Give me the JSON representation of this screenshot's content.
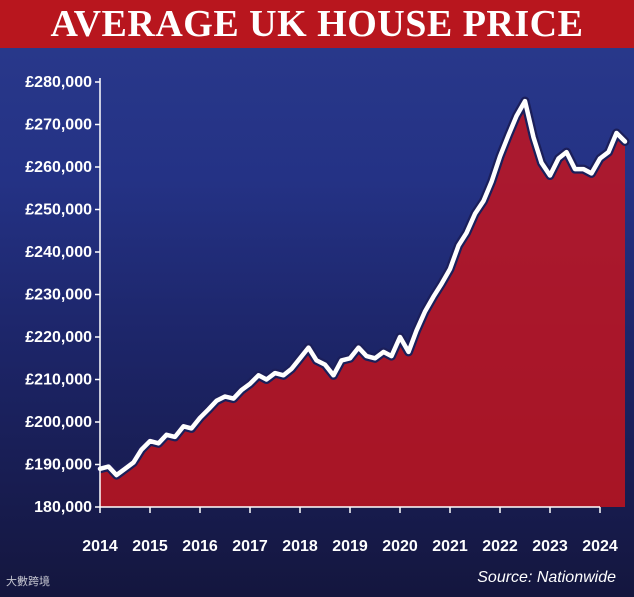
{
  "title": "AVERAGE UK HOUSE PRICE",
  "source": "Source: Nationwide",
  "watermark": "大數跨境",
  "colors": {
    "title_bg": "#b8161e",
    "area_fill": "#c8141c",
    "line": "#ffffff",
    "line_outline": "#1b1f5a"
  },
  "chart_data": {
    "type": "area",
    "title": "AVERAGE UK HOUSE PRICE",
    "xlabel": "",
    "ylabel": "",
    "xlim": [
      2014.0,
      2024.0
    ],
    "ylim": [
      180000,
      280000
    ],
    "grid": false,
    "yticks": [
      {
        "value": 280000,
        "label": "£280,000"
      },
      {
        "value": 270000,
        "label": "£270,000"
      },
      {
        "value": 260000,
        "label": "£260,000"
      },
      {
        "value": 250000,
        "label": "£250,000"
      },
      {
        "value": 240000,
        "label": "£240,000"
      },
      {
        "value": 230000,
        "label": "£230,000"
      },
      {
        "value": 220000,
        "label": "£220,000"
      },
      {
        "value": 210000,
        "label": "£210,000"
      },
      {
        "value": 200000,
        "label": "£200,000"
      },
      {
        "value": 190000,
        "label": "£190,000"
      },
      {
        "value": 180000,
        "label": "180,000"
      }
    ],
    "xticks": [
      {
        "value": 2014,
        "label": "2014"
      },
      {
        "value": 2015,
        "label": "2015"
      },
      {
        "value": 2016,
        "label": "2016"
      },
      {
        "value": 2017,
        "label": "2017"
      },
      {
        "value": 2018,
        "label": "2018"
      },
      {
        "value": 2019,
        "label": "2019"
      },
      {
        "value": 2020,
        "label": "2020"
      },
      {
        "value": 2021,
        "label": "2021"
      },
      {
        "value": 2022,
        "label": "2022"
      },
      {
        "value": 2023,
        "label": "2023"
      },
      {
        "value": 2024,
        "label": "2024"
      }
    ],
    "series": [
      {
        "points": [
          [
            2014.0,
            189000
          ],
          [
            2014.17,
            189500
          ],
          [
            2014.33,
            187500
          ],
          [
            2014.5,
            189000
          ],
          [
            2014.67,
            190500
          ],
          [
            2014.83,
            193500
          ],
          [
            2015.0,
            195500
          ],
          [
            2015.17,
            195000
          ],
          [
            2015.33,
            197000
          ],
          [
            2015.5,
            196500
          ],
          [
            2015.67,
            199000
          ],
          [
            2015.83,
            198500
          ],
          [
            2016.0,
            201000
          ],
          [
            2016.17,
            203000
          ],
          [
            2016.33,
            205000
          ],
          [
            2016.5,
            206000
          ],
          [
            2016.67,
            205500
          ],
          [
            2016.83,
            207500
          ],
          [
            2017.0,
            209000
          ],
          [
            2017.17,
            211000
          ],
          [
            2017.33,
            210000
          ],
          [
            2017.5,
            211500
          ],
          [
            2017.67,
            211000
          ],
          [
            2017.83,
            212500
          ],
          [
            2018.0,
            215000
          ],
          [
            2018.17,
            217500
          ],
          [
            2018.33,
            214500
          ],
          [
            2018.5,
            213500
          ],
          [
            2018.67,
            211000
          ],
          [
            2018.83,
            214500
          ],
          [
            2019.0,
            215000
          ],
          [
            2019.17,
            217500
          ],
          [
            2019.33,
            215500
          ],
          [
            2019.5,
            215000
          ],
          [
            2019.67,
            216500
          ],
          [
            2019.83,
            215500
          ],
          [
            2020.0,
            220000
          ],
          [
            2020.17,
            216500
          ],
          [
            2020.33,
            221500
          ],
          [
            2020.5,
            226000
          ],
          [
            2020.67,
            229500
          ],
          [
            2020.83,
            232500
          ],
          [
            2021.0,
            236000
          ],
          [
            2021.17,
            241500
          ],
          [
            2021.33,
            244500
          ],
          [
            2021.5,
            249000
          ],
          [
            2021.67,
            252000
          ],
          [
            2021.83,
            256500
          ],
          [
            2022.0,
            262500
          ],
          [
            2022.17,
            267500
          ],
          [
            2022.33,
            272000
          ],
          [
            2022.5,
            275500
          ],
          [
            2022.67,
            267000
          ],
          [
            2022.83,
            261000
          ],
          [
            2023.0,
            258000
          ],
          [
            2023.17,
            262000
          ],
          [
            2023.33,
            263500
          ],
          [
            2023.5,
            259500
          ],
          [
            2023.67,
            259500
          ],
          [
            2023.83,
            258500
          ],
          [
            2024.0,
            262000
          ],
          [
            2024.17,
            263500
          ],
          [
            2024.33,
            268000
          ],
          [
            2024.5,
            266000
          ]
        ]
      }
    ]
  }
}
